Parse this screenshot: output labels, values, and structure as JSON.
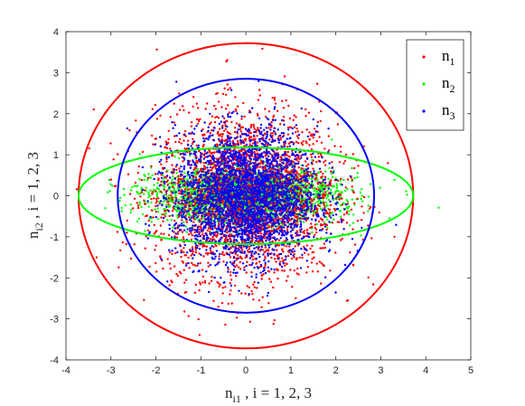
{
  "chart_data": {
    "type": "scatter",
    "xlabel": {
      "base": "n",
      "sub": "i1",
      "rest": " , i = 1, 2, 3"
    },
    "ylabel": {
      "base": "n",
      "sub": "i2",
      "rest": " , i = 1, 2, 3"
    },
    "xlim": [
      -4,
      5
    ],
    "ylim": [
      -4,
      4
    ],
    "xticks": [
      -4,
      -3,
      -2,
      -1,
      0,
      1,
      2,
      3,
      4,
      5
    ],
    "yticks": [
      -4,
      -3,
      -2,
      -1,
      0,
      1,
      2,
      3,
      4
    ],
    "xtick_labels": [
      "-4",
      "-3",
      "-2",
      "-1",
      "0",
      "1",
      "2",
      "3",
      "4",
      "5"
    ],
    "ytick_labels": [
      "-4",
      "-3",
      "-2",
      "-1",
      "0",
      "1",
      "2",
      "3",
      "4"
    ],
    "grid": false,
    "legend_position": "top-right",
    "series": [
      {
        "name": "n",
        "sub": "1",
        "color": "#ff0000",
        "marker": "dot",
        "point_count": 3000,
        "std_x": 1.0,
        "std_y": 1.0,
        "bound_ellipse": {
          "cx": 0,
          "cy": 0,
          "rx": 3.72,
          "ry": 3.72
        }
      },
      {
        "name": "n",
        "sub": "2",
        "color": "#00ff00",
        "marker": "dot",
        "point_count": 3000,
        "std_x": 1.0,
        "std_y": 0.32,
        "bound_ellipse": {
          "cx": 0,
          "cy": 0,
          "rx": 3.72,
          "ry": 1.18
        }
      },
      {
        "name": "n",
        "sub": "3",
        "color": "#0000ff",
        "marker": "dot",
        "point_count": 3000,
        "std_x": 0.78,
        "std_y": 0.78,
        "bound_ellipse": {
          "cx": 0,
          "cy": 0,
          "rx": 2.85,
          "ry": 2.85
        }
      }
    ]
  }
}
